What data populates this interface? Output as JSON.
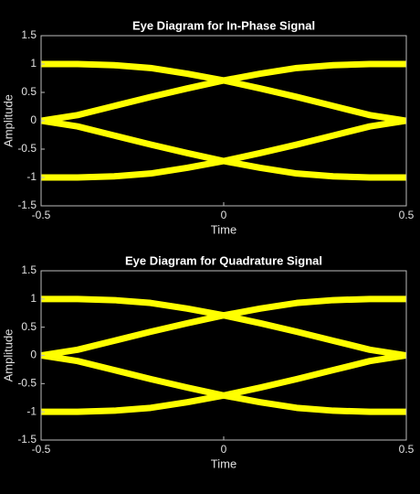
{
  "chart_data": [
    {
      "type": "line",
      "title": "Eye Diagram for In-Phase Signal",
      "xlabel": "Time",
      "ylabel": "Amplitude",
      "x": [
        -0.5,
        -0.4,
        -0.3,
        -0.2,
        -0.1,
        0,
        0.1,
        0.2,
        0.3,
        0.4,
        0.5
      ],
      "series": [
        {
          "color": "#ffff00",
          "values": [
            1,
            1,
            0.98,
            0.93,
            0.83,
            0.71,
            0.83,
            0.93,
            0.98,
            1,
            1
          ]
        },
        {
          "color": "#ffff00",
          "values": [
            0,
            0.1,
            0.26,
            0.42,
            0.57,
            0.71,
            0.57,
            0.42,
            0.26,
            0.1,
            0
          ]
        },
        {
          "color": "#ffff00",
          "values": [
            -1,
            -1,
            -0.98,
            -0.93,
            -0.83,
            -0.71,
            -0.83,
            -0.93,
            -0.98,
            -1,
            -1
          ]
        },
        {
          "color": "#ffff00",
          "values": [
            0,
            -0.1,
            -0.26,
            -0.42,
            -0.57,
            -0.71,
            -0.57,
            -0.42,
            -0.26,
            -0.1,
            0
          ]
        }
      ],
      "xlim": [
        -0.5,
        0.5
      ],
      "xticks": [
        -0.5,
        0,
        0.5
      ],
      "ylim": [
        -1.5,
        1.5
      ],
      "yticks": [
        -1.5,
        -1,
        -0.5,
        0,
        0.5,
        1,
        1.5
      ]
    },
    {
      "type": "line",
      "title": "Eye Diagram for Quadrature Signal",
      "xlabel": "Time",
      "ylabel": "Amplitude",
      "x": [
        -0.5,
        -0.4,
        -0.3,
        -0.2,
        -0.1,
        0,
        0.1,
        0.2,
        0.3,
        0.4,
        0.5
      ],
      "series": [
        {
          "color": "#ffff00",
          "values": [
            1,
            1,
            0.98,
            0.93,
            0.83,
            0.71,
            0.83,
            0.93,
            0.98,
            1,
            1
          ]
        },
        {
          "color": "#ffff00",
          "values": [
            0,
            0.1,
            0.26,
            0.42,
            0.57,
            0.71,
            0.57,
            0.42,
            0.26,
            0.1,
            0
          ]
        },
        {
          "color": "#ffff00",
          "values": [
            -1,
            -1,
            -0.98,
            -0.93,
            -0.83,
            -0.71,
            -0.83,
            -0.93,
            -0.98,
            -1,
            -1
          ]
        },
        {
          "color": "#ffff00",
          "values": [
            0,
            -0.1,
            -0.26,
            -0.42,
            -0.57,
            -0.71,
            -0.57,
            -0.42,
            -0.26,
            -0.1,
            0
          ]
        }
      ],
      "xlim": [
        -0.5,
        0.5
      ],
      "xticks": [
        -0.5,
        0,
        0.5
      ],
      "ylim": [
        -1.5,
        1.5
      ],
      "yticks": [
        -1.5,
        -1,
        -0.5,
        0,
        0.5,
        1,
        1.5
      ]
    }
  ]
}
